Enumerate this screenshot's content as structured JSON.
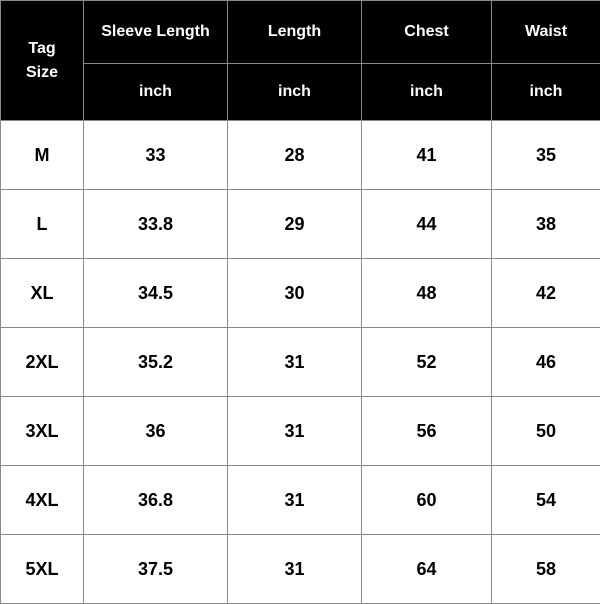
{
  "header": {
    "tag_size_line1": "Tag",
    "tag_size_line2": "Size",
    "columns": [
      "Sleeve Length",
      "Length",
      "Chest",
      "Waist"
    ],
    "units": [
      "inch",
      "inch",
      "inch",
      "inch"
    ]
  },
  "rows": [
    {
      "size": "M",
      "values": [
        "33",
        "28",
        "41",
        "35"
      ]
    },
    {
      "size": "L",
      "values": [
        "33.8",
        "29",
        "44",
        "38"
      ]
    },
    {
      "size": "XL",
      "values": [
        "34.5",
        "30",
        "48",
        "42"
      ]
    },
    {
      "size": "2XL",
      "values": [
        "35.2",
        "31",
        "52",
        "46"
      ]
    },
    {
      "size": "3XL",
      "values": [
        "36",
        "31",
        "56",
        "50"
      ]
    },
    {
      "size": "4XL",
      "values": [
        "36.8",
        "31",
        "60",
        "54"
      ]
    },
    {
      "size": "5XL",
      "values": [
        "37.5",
        "31",
        "64",
        "58"
      ]
    }
  ]
}
